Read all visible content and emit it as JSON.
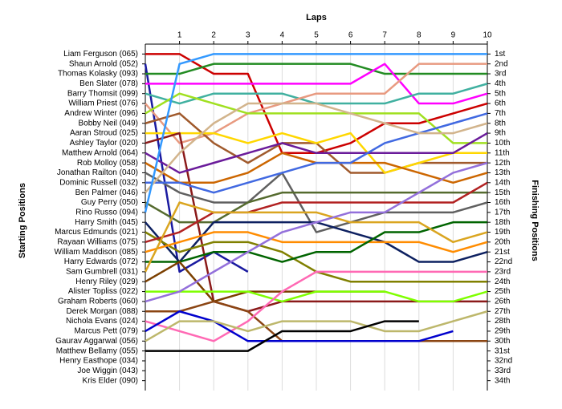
{
  "chart_data": {
    "type": "lap",
    "title": "Laps",
    "y_label": "Starting Positions",
    "y2_label": "Finishing Positions",
    "x": [
      0,
      1,
      2,
      3,
      4,
      5,
      6,
      7,
      8,
      9,
      10
    ],
    "xlim": [
      0,
      10
    ],
    "xticks": [
      1,
      2,
      3,
      4,
      5,
      6,
      7,
      8,
      9,
      10
    ],
    "ylim": [
      0,
      35
    ],
    "grid": true,
    "yticks": [
      {
        "value": 1,
        "label": "1st"
      },
      {
        "value": 2,
        "label": "2nd"
      },
      {
        "value": 3,
        "label": "3rd"
      },
      {
        "value": 4,
        "label": "4th"
      },
      {
        "value": 5,
        "label": "5th"
      },
      {
        "value": 6,
        "label": "6th"
      },
      {
        "value": 7,
        "label": "7th"
      },
      {
        "value": 8,
        "label": "8th"
      },
      {
        "value": 9,
        "label": "9th"
      },
      {
        "value": 10,
        "label": "10th"
      },
      {
        "value": 11,
        "label": "11th"
      },
      {
        "value": 12,
        "label": "12th"
      },
      {
        "value": 13,
        "label": "13th"
      },
      {
        "value": 14,
        "label": "14th"
      },
      {
        "value": 15,
        "label": "15th"
      },
      {
        "value": 16,
        "label": "16th"
      },
      {
        "value": 17,
        "label": "17th"
      },
      {
        "value": 18,
        "label": "18th"
      },
      {
        "value": 19,
        "label": "19th"
      },
      {
        "value": 20,
        "label": "20th"
      },
      {
        "value": 21,
        "label": "21st"
      },
      {
        "value": 22,
        "label": "22nd"
      },
      {
        "value": 23,
        "label": "23rd"
      },
      {
        "value": 24,
        "label": "24th"
      },
      {
        "value": 25,
        "label": "25th"
      },
      {
        "value": 26,
        "label": "26th"
      },
      {
        "value": 27,
        "label": "27th"
      },
      {
        "value": 28,
        "label": "28th"
      },
      {
        "value": 29,
        "label": "29th"
      },
      {
        "value": 30,
        "label": "30th"
      },
      {
        "value": 31,
        "label": "31st"
      },
      {
        "value": 32,
        "label": "32nd"
      },
      {
        "value": 33,
        "label": "33rd"
      },
      {
        "value": 34,
        "label": "34th"
      }
    ],
    "series": [
      {
        "name": "Liam Ferguson (065)",
        "color": "#cc0000",
        "values": [
          1,
          1,
          3,
          3,
          11,
          11,
          10,
          8,
          8,
          7,
          6
        ]
      },
      {
        "name": "Shaun Arnold (052)",
        "color": "#1a1aa0",
        "values": [
          2,
          23,
          21,
          23,
          null,
          null,
          null,
          null,
          null,
          null,
          null
        ]
      },
      {
        "name": "Thomas Kolasky (093)",
        "color": "#228b22",
        "values": [
          3,
          3,
          2,
          2,
          2,
          2,
          2,
          3,
          3,
          3,
          3
        ]
      },
      {
        "name": "Ben Slater (078)",
        "color": "#ff00ff",
        "values": [
          4,
          4,
          4,
          4,
          4,
          4,
          4,
          2,
          6,
          6,
          5
        ]
      },
      {
        "name": "Barry Thomsit (099)",
        "color": "#40b0a0",
        "values": [
          5,
          6,
          5,
          5,
          5,
          6,
          6,
          6,
          5,
          5,
          4
        ]
      },
      {
        "name": "William Priest (076)",
        "color": "#e89a80",
        "values": [
          6,
          10,
          9,
          7,
          6,
          5,
          5,
          5,
          2,
          2,
          2
        ]
      },
      {
        "name": "Andrew Winter (096)",
        "color": "#a0e020",
        "values": [
          7,
          5,
          6,
          7,
          7,
          7,
          7,
          7,
          7,
          10,
          10
        ]
      },
      {
        "name": "Bobby Neil (049)",
        "color": "#a05a2c",
        "values": [
          8,
          7,
          10,
          12,
          10,
          10,
          13,
          13,
          12,
          12,
          12
        ]
      },
      {
        "name": "Aaran Stroud (025)",
        "color": "#ffd700",
        "values": [
          9,
          9,
          9,
          10,
          9,
          10,
          9,
          13,
          12,
          11,
          11
        ]
      },
      {
        "name": "Ashley Taylor (020)",
        "color": "#8b1a1a",
        "values": [
          10,
          9,
          26,
          27,
          26,
          26,
          26,
          26,
          26,
          26,
          26
        ]
      },
      {
        "name": "Matthew Arnold (064)",
        "color": "#6a1b9a",
        "values": [
          11,
          13,
          12,
          11,
          10,
          11,
          11,
          11,
          11,
          11,
          9
        ]
      },
      {
        "name": "Rob Molloy (058)",
        "color": "#cc6600",
        "values": [
          12,
          14,
          14,
          13,
          11,
          12,
          12,
          12,
          13,
          14,
          13
        ]
      },
      {
        "name": "Jonathan Railton (040)",
        "color": "#606060",
        "values": [
          13,
          15,
          16,
          16,
          13,
          19,
          18,
          17,
          17,
          17,
          16
        ]
      },
      {
        "name": "Dominic Russell (032)",
        "color": "#4169e1",
        "values": [
          14,
          14,
          15,
          14,
          13,
          12,
          12,
          10,
          9,
          8,
          7
        ]
      },
      {
        "name": "Ben Palmer (046)",
        "color": "#d2b48c",
        "values": [
          15,
          11,
          8,
          6,
          6,
          6,
          7,
          8,
          9,
          9,
          8
        ]
      },
      {
        "name": "Guy Perry (050)",
        "color": "#556b2f",
        "values": [
          16,
          18,
          18,
          16,
          15,
          15,
          15,
          15,
          15,
          15,
          15
        ]
      },
      {
        "name": "Rino Russo (094)",
        "color": "#3399ff",
        "values": [
          17,
          2,
          1,
          1,
          1,
          1,
          1,
          1,
          1,
          1,
          1
        ]
      },
      {
        "name": "Harry Smith (045)",
        "color": "#0d2060",
        "values": [
          18,
          22,
          18,
          18,
          18,
          18,
          19,
          20,
          22,
          22,
          21
        ]
      },
      {
        "name": "Marcus Edmunds (021)",
        "color": "#808000",
        "values": [
          19,
          21,
          20,
          20,
          21,
          23,
          24,
          24,
          24,
          24,
          24
        ]
      },
      {
        "name": "Rayaan Williams (075)",
        "color": "#b22222",
        "values": [
          20,
          19,
          17,
          17,
          16,
          16,
          16,
          16,
          16,
          16,
          14
        ]
      },
      {
        "name": "William Maddison (085)",
        "color": "#ff8c00",
        "values": [
          21,
          20,
          19,
          19,
          20,
          20,
          20,
          20,
          20,
          21,
          20
        ]
      },
      {
        "name": "Harry Edwards (072)",
        "color": "#006400",
        "values": [
          22,
          22,
          21,
          21,
          22,
          21,
          21,
          19,
          19,
          18,
          18
        ]
      },
      {
        "name": "Sam Gumbrell (031)",
        "color": "#daa520",
        "values": [
          23,
          16,
          17,
          17,
          17,
          17,
          18,
          18,
          18,
          20,
          19
        ]
      },
      {
        "name": "Henry Riley (029)",
        "color": "#7b3f00",
        "values": [
          24,
          22,
          26,
          25,
          25,
          25,
          25,
          25,
          null,
          null,
          null
        ]
      },
      {
        "name": "Alister Topliss (022)",
        "color": "#7fff00",
        "values": [
          25,
          25,
          25,
          25,
          26,
          25,
          25,
          25,
          26,
          26,
          25
        ]
      },
      {
        "name": "Graham Roberts (060)",
        "color": "#9370db",
        "values": [
          26,
          25,
          23,
          21,
          19,
          18,
          17,
          17,
          15,
          13,
          12
        ]
      },
      {
        "name": "Derek Morgan (088)",
        "color": "#8b4513",
        "values": [
          27,
          27,
          26,
          27,
          30,
          30,
          30,
          30,
          30,
          30,
          30
        ]
      },
      {
        "name": "Nichola Evans (024)",
        "color": "#ff69b4",
        "values": [
          28,
          29,
          30,
          28,
          25,
          23,
          23,
          23,
          23,
          23,
          23
        ]
      },
      {
        "name": "Marcus Pett (079)",
        "color": "#0000cd",
        "values": [
          29,
          27,
          28,
          30,
          30,
          30,
          30,
          30,
          30,
          29,
          null
        ]
      },
      {
        "name": "Gaurav Aggarwal (056)",
        "color": "#bdb76b",
        "values": [
          30,
          28,
          28,
          29,
          28,
          28,
          28,
          29,
          29,
          28,
          27
        ]
      },
      {
        "name": "Matthew Bellamy (055)",
        "color": "#000000",
        "values": [
          31,
          31,
          31,
          31,
          29,
          29,
          29,
          28,
          28,
          null,
          null
        ]
      },
      {
        "name": "Henry Easthope (034)",
        "color": "#999999",
        "values": [
          32,
          null,
          null,
          null,
          null,
          null,
          null,
          null,
          null,
          null,
          null
        ]
      },
      {
        "name": "Joe Wiggin (043)",
        "color": "#999999",
        "values": [
          33,
          null,
          null,
          null,
          null,
          null,
          null,
          null,
          null,
          null,
          null
        ]
      },
      {
        "name": "Kris Elder (090)",
        "color": "#999999",
        "values": [
          34,
          null,
          null,
          null,
          null,
          null,
          null,
          null,
          null,
          null,
          null
        ]
      }
    ]
  }
}
